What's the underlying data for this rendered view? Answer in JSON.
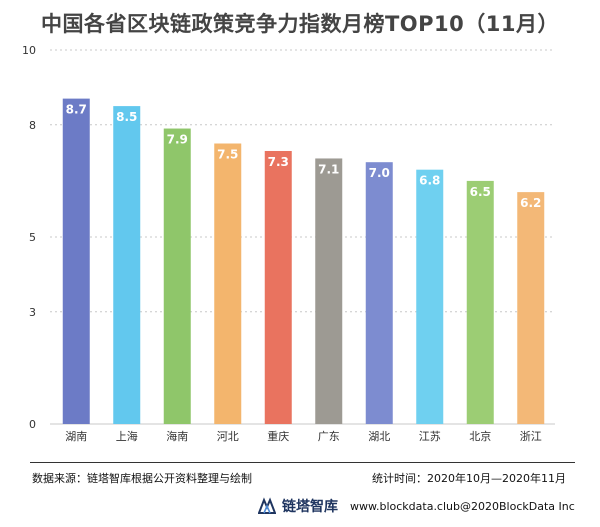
{
  "header": {
    "title": "中国各省区块链政策竞争力指数月榜TOP10（11月）"
  },
  "chart_data": {
    "type": "bar",
    "categories": [
      "湖南",
      "上海",
      "海南",
      "河北",
      "重庆",
      "广东",
      "湖北",
      "江苏",
      "北京",
      "浙江"
    ],
    "values": [
      8.7,
      8.5,
      7.9,
      7.5,
      7.3,
      7.1,
      7.0,
      6.8,
      6.5,
      6.2
    ],
    "value_labels": [
      "8.7",
      "8.5",
      "7.9",
      "7.5",
      "7.3",
      "7.1",
      "7.0",
      "6.8",
      "6.5",
      "6.2"
    ],
    "bar_colors": [
      "#6c7bc6",
      "#62c8ee",
      "#8fc66a",
      "#f3b56d",
      "#e9735f",
      "#9d9a93",
      "#7d8cd0",
      "#6fd0f0",
      "#9ccd74",
      "#f3b877"
    ],
    "yticks": [
      0,
      3,
      5,
      8,
      10
    ],
    "ylim": [
      0,
      10
    ],
    "grid": true,
    "title": "中国各省区块链政策竞争力指数月榜TOP10（11月）",
    "xlabel": "",
    "ylabel": ""
  },
  "footer": {
    "source": "数据来源：链塔智库根据公开资料整理与绘制",
    "period": "统计时间：2020年10月—2020年11月",
    "brand_name": "链塔智库",
    "brand_url": "www.blockdata.club@2020BlockData Inc",
    "logo_icon": "blockdata-logo-icon"
  }
}
